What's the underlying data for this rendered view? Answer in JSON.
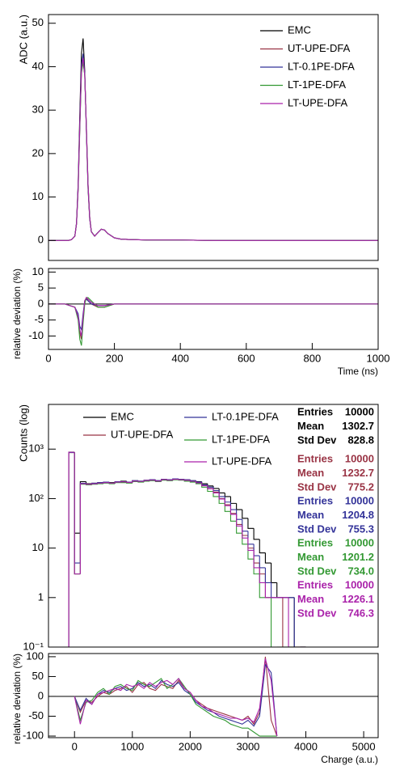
{
  "chart_data": [
    {
      "type": "line",
      "ylabel": "ADC (a.u.)",
      "xlim": [
        0,
        1000
      ],
      "ylim": [
        -4.6,
        52
      ],
      "yticks": [
        0,
        10,
        20,
        30,
        40,
        50
      ],
      "x": [
        0,
        20,
        40,
        60,
        70,
        80,
        85,
        90,
        95,
        100,
        105,
        110,
        115,
        120,
        125,
        130,
        140,
        150,
        160,
        170,
        180,
        200,
        220,
        250,
        300,
        400,
        500,
        600,
        700,
        800,
        900,
        1000
      ],
      "series": [
        {
          "name": "EMC",
          "color": "#000000",
          "values": [
            0,
            0,
            0,
            0,
            0.2,
            1,
            4,
            13,
            29,
            43,
            46.5,
            39,
            25,
            12,
            5,
            2,
            1,
            1.8,
            2.6,
            2.4,
            1.6,
            0.6,
            0.3,
            0.2,
            0.1,
            0.1,
            0,
            0,
            0,
            0,
            0,
            0
          ]
        },
        {
          "name": "UT-UPE-DFA",
          "color": "#993344",
          "values": [
            0,
            0,
            0,
            0,
            0.2,
            1,
            3.8,
            12,
            26,
            39,
            41.5,
            38,
            26,
            13,
            5.5,
            2,
            1,
            1.8,
            2.6,
            2.4,
            1.6,
            0.6,
            0.3,
            0.2,
            0.1,
            0.1,
            0,
            0,
            0,
            0,
            0,
            0
          ]
        },
        {
          "name": "LT-0.1PE-DFA",
          "color": "#333399",
          "values": [
            0,
            0,
            0,
            0,
            0.2,
            1,
            3.9,
            12.5,
            27,
            40.5,
            43,
            38.5,
            25.5,
            12.5,
            5.2,
            2,
            1,
            1.8,
            2.6,
            2.4,
            1.6,
            0.6,
            0.3,
            0.2,
            0.1,
            0.1,
            0,
            0,
            0,
            0,
            0,
            0
          ]
        },
        {
          "name": "LT-1PE-DFA",
          "color": "#339933",
          "values": [
            0,
            0,
            0,
            0,
            0.2,
            1,
            3.7,
            11.5,
            25.5,
            38.5,
            41,
            38,
            26,
            13,
            5.5,
            2.1,
            1,
            1.8,
            2.6,
            2.4,
            1.6,
            0.6,
            0.3,
            0.2,
            0.1,
            0.1,
            0,
            0,
            0,
            0,
            0,
            0
          ]
        },
        {
          "name": "LT-UPE-DFA",
          "color": "#aa22aa",
          "values": [
            0,
            0,
            0,
            0,
            0.2,
            1,
            3.8,
            12,
            26.5,
            39.5,
            42,
            38,
            25.8,
            12.8,
            5.3,
            2,
            1,
            1.8,
            2.6,
            2.4,
            1.6,
            0.6,
            0.3,
            0.2,
            0.1,
            0.1,
            0,
            0,
            0,
            0,
            0,
            0
          ]
        }
      ]
    },
    {
      "type": "line",
      "ylabel": "relative deviation (%)",
      "xlabel": "Time (ns)",
      "xlim": [
        0,
        1000
      ],
      "xticks": [
        0,
        200,
        400,
        600,
        800,
        1000
      ],
      "ylim": [
        -14.2,
        11.1
      ],
      "yticks": [
        -10,
        -5,
        0,
        5,
        10
      ],
      "x": [
        0,
        50,
        80,
        90,
        95,
        100,
        105,
        110,
        115,
        120,
        130,
        150,
        170,
        200,
        250,
        300,
        500,
        700,
        1000
      ],
      "series": [
        {
          "color": "#993344",
          "values": [
            0,
            0,
            -1,
            -4,
            -9,
            -11,
            -5,
            1,
            2,
            1,
            0,
            -1,
            -1,
            0,
            0,
            0,
            0,
            0,
            0
          ]
        },
        {
          "color": "#333399",
          "values": [
            0,
            0,
            -1,
            -3,
            -7,
            -8,
            -3,
            1,
            1.5,
            1,
            0,
            -0.5,
            -0.5,
            0,
            0,
            0,
            0,
            0,
            0
          ]
        },
        {
          "color": "#339933",
          "values": [
            0,
            0,
            -1,
            -5,
            -11,
            -13,
            -6,
            0,
            2,
            2,
            1,
            -1,
            -1,
            0,
            0,
            0,
            0,
            0,
            0
          ]
        },
        {
          "color": "#aa22aa",
          "values": [
            0,
            0,
            -1,
            -4,
            -8,
            -10,
            -4,
            1,
            2,
            1.5,
            0.5,
            -0.5,
            -0.5,
            0,
            0,
            0,
            0,
            0,
            0
          ]
        }
      ]
    },
    {
      "type": "histogram",
      "ylabel": "Counts (log)",
      "log_y": true,
      "xlim": [
        -450,
        5250
      ],
      "ylim": [
        0.1,
        8000
      ],
      "yticks": [
        {
          "value": 0.1,
          "label": "10⁻¹"
        },
        1,
        10,
        {
          "value": 100,
          "label": "10²"
        },
        {
          "value": 1000,
          "label": "10³"
        }
      ],
      "bins": [
        -100,
        0,
        100,
        200,
        300,
        400,
        500,
        600,
        700,
        800,
        900,
        1000,
        1100,
        1200,
        1300,
        1400,
        1500,
        1600,
        1700,
        1800,
        1900,
        2000,
        2100,
        2200,
        2300,
        2400,
        2500,
        2600,
        2700,
        2800,
        2900,
        3000,
        3100,
        3200,
        3300,
        3400,
        3500,
        3600,
        3700,
        3800,
        3900,
        4000
      ],
      "series": [
        {
          "name": "EMC",
          "color": "#000000",
          "values": [
            850,
            20,
            220,
            200,
            205,
            210,
            215,
            210,
            220,
            225,
            215,
            230,
            225,
            235,
            240,
            230,
            245,
            240,
            250,
            245,
            240,
            230,
            220,
            200,
            180,
            160,
            130,
            110,
            80,
            60,
            40,
            25,
            15,
            8,
            5,
            2,
            1,
            1,
            1,
            0,
            0
          ],
          "stats": [
            {
              "label": "Entries",
              "value": "10000"
            },
            {
              "label": "Mean",
              "value": "1302.7"
            },
            {
              "label": "Std Dev",
              "value": "828.8"
            }
          ]
        },
        {
          "name": "UT-UPE-DFA",
          "color": "#993344",
          "values": [
            860,
            3,
            200,
            190,
            200,
            205,
            210,
            205,
            215,
            215,
            210,
            225,
            220,
            230,
            235,
            225,
            240,
            235,
            245,
            240,
            235,
            225,
            210,
            185,
            160,
            135,
            100,
            75,
            50,
            30,
            18,
            10,
            5,
            3,
            1,
            1,
            1,
            0,
            0,
            0,
            0
          ],
          "stats": [
            {
              "label": "Entries",
              "value": "10000"
            },
            {
              "label": "Mean",
              "value": "1232.7"
            },
            {
              "label": "Std Dev",
              "value": "775.2"
            }
          ]
        },
        {
          "name": "LT-0.1PE-DFA",
          "color": "#333399",
          "values": [
            855,
            5,
            205,
            195,
            205,
            210,
            215,
            205,
            220,
            220,
            215,
            230,
            225,
            235,
            240,
            230,
            245,
            240,
            250,
            245,
            240,
            230,
            215,
            190,
            170,
            145,
            110,
            85,
            60,
            38,
            22,
            12,
            7,
            4,
            2,
            1,
            1,
            1,
            1,
            0,
            0
          ],
          "stats": [
            {
              "label": "Entries",
              "value": "10000"
            },
            {
              "label": "Mean",
              "value": "1204.8"
            },
            {
              "label": "Std Dev",
              "value": "755.3"
            }
          ]
        },
        {
          "name": "LT-1PE-DFA",
          "color": "#339933",
          "values": [
            870,
            3,
            195,
            190,
            195,
            200,
            205,
            200,
            210,
            210,
            205,
            220,
            215,
            225,
            230,
            220,
            235,
            230,
            240,
            235,
            225,
            215,
            200,
            170,
            140,
            110,
            80,
            55,
            35,
            20,
            12,
            6,
            3,
            1,
            1,
            0,
            0,
            0,
            0,
            0,
            0
          ],
          "stats": [
            {
              "label": "Entries",
              "value": "10000"
            },
            {
              "label": "Mean",
              "value": "1201.2"
            },
            {
              "label": "Std Dev",
              "value": "734.0"
            }
          ]
        },
        {
          "name": "LT-UPE-DFA",
          "color": "#aa22aa",
          "values": [
            865,
            3,
            200,
            195,
            200,
            205,
            210,
            205,
            215,
            218,
            212,
            226,
            222,
            232,
            236,
            226,
            242,
            236,
            246,
            241,
            234,
            224,
            208,
            182,
            158,
            130,
            98,
            72,
            48,
            28,
            16,
            9,
            4,
            2,
            1,
            1,
            1,
            1,
            0,
            0,
            0
          ],
          "stats": [
            {
              "label": "Entries",
              "value": "10000"
            },
            {
              "label": "Mean",
              "value": "1226.1"
            },
            {
              "label": "Std Dev",
              "value": "746.3"
            }
          ]
        }
      ]
    },
    {
      "type": "line",
      "ylabel": "relative deviation (%)",
      "xlabel": "Charge (a.u.)",
      "xlim": [
        -450,
        5250
      ],
      "xticks": [
        0,
        1000,
        2000,
        3000,
        4000,
        5000
      ],
      "ylim": [
        -104,
        108
      ],
      "yticks": [
        -100,
        -50,
        0,
        50,
        100
      ],
      "x": [
        0,
        100,
        200,
        300,
        400,
        500,
        600,
        700,
        800,
        900,
        1000,
        1100,
        1200,
        1300,
        1400,
        1500,
        1600,
        1700,
        1800,
        1900,
        2000,
        2100,
        2200,
        2300,
        2400,
        2500,
        2600,
        2700,
        2800,
        2900,
        3000,
        3100,
        3200,
        3300,
        3400,
        3500
      ],
      "series": [
        {
          "color": "#993344",
          "values": [
            0,
            -40,
            -10,
            -15,
            0,
            10,
            5,
            15,
            20,
            25,
            10,
            30,
            35,
            20,
            15,
            30,
            25,
            20,
            40,
            20,
            10,
            -10,
            -20,
            -30,
            -35,
            -40,
            -45,
            -50,
            -55,
            -60,
            -50,
            -70,
            -40,
            100,
            -60,
            -100
          ]
        },
        {
          "color": "#333399",
          "values": [
            0,
            -35,
            -5,
            -20,
            5,
            15,
            10,
            20,
            25,
            15,
            20,
            35,
            25,
            30,
            20,
            40,
            30,
            25,
            35,
            15,
            5,
            -15,
            -25,
            -35,
            -40,
            -50,
            -55,
            -60,
            -65,
            -70,
            -60,
            -75,
            -50,
            80,
            60,
            -100
          ]
        },
        {
          "color": "#339933",
          "values": [
            0,
            -60,
            -15,
            -10,
            10,
            20,
            5,
            25,
            30,
            20,
            15,
            40,
            30,
            25,
            35,
            45,
            20,
            30,
            45,
            25,
            5,
            -20,
            -30,
            -40,
            -50,
            -55,
            -60,
            -70,
            -75,
            -80,
            -80,
            -90,
            -100,
            -100,
            -100,
            -100
          ]
        },
        {
          "color": "#aa22aa",
          "values": [
            0,
            -70,
            -10,
            -20,
            5,
            10,
            15,
            20,
            15,
            30,
            25,
            30,
            20,
            35,
            25,
            35,
            40,
            30,
            45,
            20,
            10,
            -10,
            -25,
            -30,
            -40,
            -45,
            -50,
            -55,
            -55,
            -60,
            -55,
            -65,
            -30,
            95,
            40,
            -100
          ]
        }
      ]
    }
  ]
}
